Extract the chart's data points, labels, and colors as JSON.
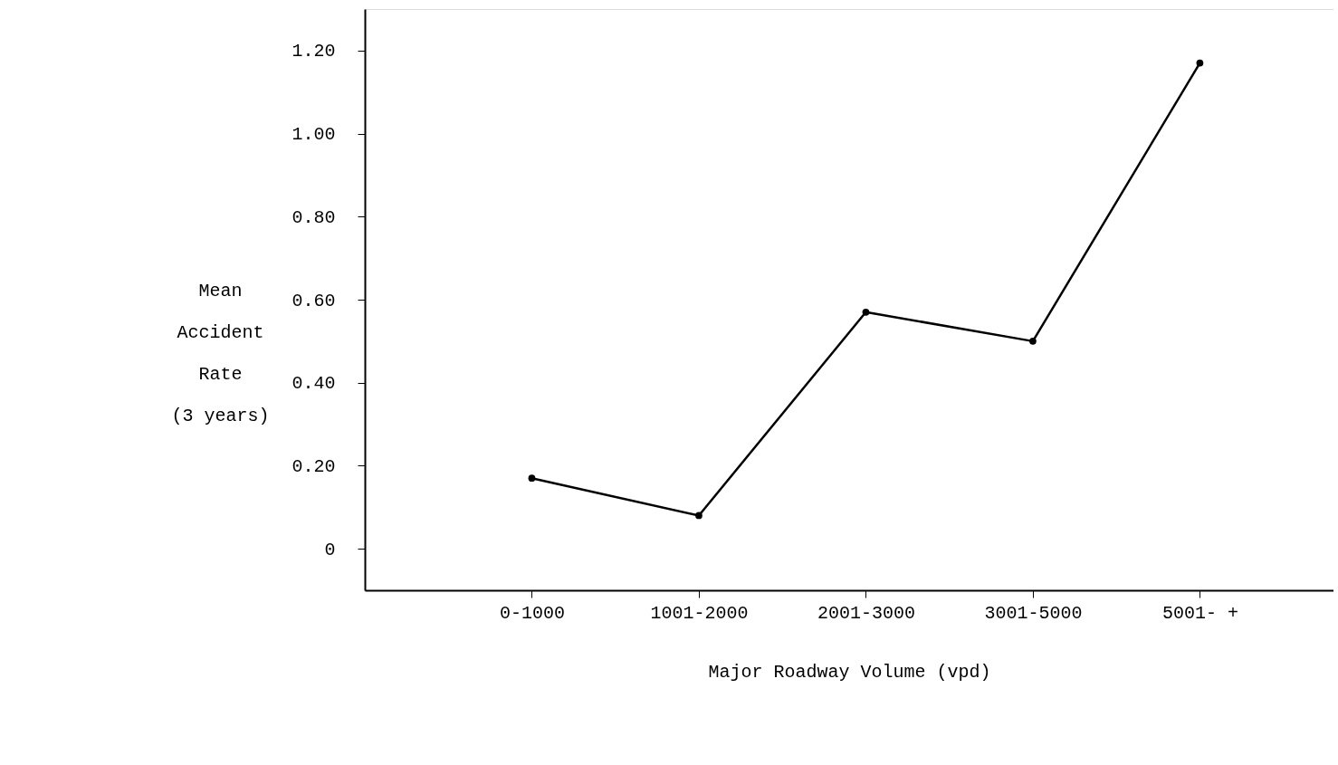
{
  "chart_data": {
    "type": "line",
    "categories": [
      "0-1000",
      "1001-2000",
      "2001-3000",
      "3001-5000",
      "5001- +"
    ],
    "series": [
      {
        "color": "#000000",
        "values": [
          0.17,
          0.08,
          0.57,
          0.5,
          1.17
        ]
      }
    ],
    "xlabel": "Major Roadway Volume (vpd)",
    "ylabel": "Mean\nAccident\nRate\n(3 years)",
    "ylim": [
      -0.1,
      1.3
    ],
    "yticks": [
      {
        "value": 0,
        "label": "0"
      },
      {
        "value": 0.2,
        "label": "0.20"
      },
      {
        "value": 0.4,
        "label": "0.40"
      },
      {
        "value": 0.6,
        "label": "0.60"
      },
      {
        "value": 0.8,
        "label": "0.80"
      },
      {
        "value": 1.0,
        "label": "1.00"
      },
      {
        "value": 1.2,
        "label": "1.20"
      }
    ],
    "marker": "circle",
    "line_style": "solid",
    "grid": false
  }
}
